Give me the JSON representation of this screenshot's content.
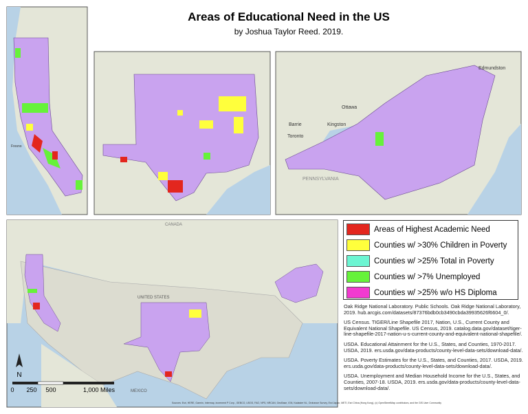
{
  "header": {
    "title": "Areas of Educational Need in the US",
    "subtitle": "by Joshua Taylor Reed. 2019."
  },
  "legend": {
    "items": [
      {
        "label": "Areas of Highest Academic Need",
        "color": "#e3261e"
      },
      {
        "label": "Counties w/ >30% Children in Poverty",
        "color": "#ffff3c"
      },
      {
        "label": "Counties w/ >25% Total in Poverty",
        "color": "#6cf5d2"
      },
      {
        "label": "Counties w/ >7% Unemployed",
        "color": "#66f23a"
      },
      {
        "label": "Counties w/ >25% w/o HS Diploma",
        "color": "#f23ad0"
      }
    ]
  },
  "references": [
    "Oak Ridge National Laboratory. Public Schools. Oak Ridge National Laboratory, 2019. hub.arcgis.com/datasets/87376bdb0cb3490cbda39935626f6604_0/.",
    "US Census. TIGER/Line Shapefile 2017, Nation, U.S., Current County and Equivalent National Shapefile. US Census, 2019. catalog.data.gov/dataset/tiger-line-shapefile-2017-nation-u-s-current-county-and-equivalent-national-shapefile/.",
    "USDA. Educational Attainment for the U.S., States, and Counties, 1970-2017. USDA, 2019. ers.usda.gov/data-products/county-level-data-sets/download-data/.",
    "USDA. Poverty Estimates for the U.S., States, and Counties, 2017. USDA, 2019. ers.usda.gov/data-products/county-level-data-sets/download-data/.",
    "USDA. Unemployment and Median Household Income for the U.S., States, and Counties, 2007-18. USDA, 2019. ers.usda.gov/data-products/county-level-data-sets/download-data/."
  ],
  "scale_bar": {
    "labels": [
      "0",
      "250",
      "500",
      "1,000 Miles"
    ]
  },
  "north_arrow": "N",
  "map_labels": {
    "canada": "CANADA",
    "united_states": "UNITED STATES",
    "mexico": "MEXICO",
    "ottawa": "Ottawa",
    "toronto": "Toronto",
    "kingston": "Kingston",
    "barrie": "Barrie",
    "edmundston": "Edmundston",
    "fresno": "Fresno",
    "pennsylvania": "PENNSYLVANIA"
  },
  "attribution": "Sources: Esri, HERE, Garmin, Intermap, increment P Corp., GEBCO, USGS, FAO, NPS, NRCAN, GeoBase, IGN, Kadaster NL, Ordnance Survey, Esri Japan, METI, Esri China (Hong Kong), (c) OpenStreetMap contributors, and the GIS User Community"
}
